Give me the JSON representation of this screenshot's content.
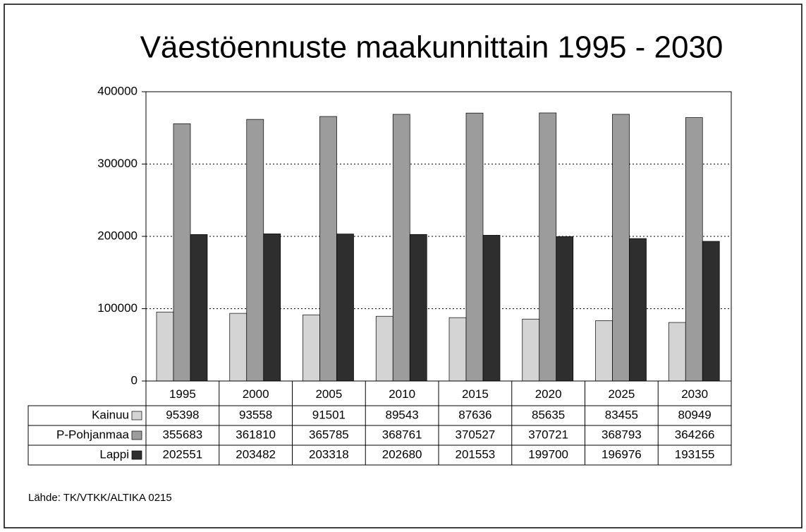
{
  "chart_data": {
    "type": "bar",
    "title": "Väestöennuste maakunnittain 1995 - 2030",
    "categories": [
      "1995",
      "2000",
      "2005",
      "2010",
      "2015",
      "2020",
      "2025",
      "2030"
    ],
    "series": [
      {
        "name": "Kainuu",
        "color": "#d4d4d4",
        "values": [
          95398,
          93558,
          91501,
          89543,
          87636,
          85635,
          83455,
          80949
        ]
      },
      {
        "name": "P-Pohjanmaa",
        "color": "#9c9c9c",
        "values": [
          355683,
          361810,
          365785,
          368761,
          370527,
          370721,
          368793,
          364266
        ]
      },
      {
        "name": "Lappi",
        "color": "#2e2e2e",
        "values": [
          202551,
          203482,
          203318,
          202680,
          201553,
          199700,
          196976,
          193155
        ]
      }
    ],
    "ylim": [
      0,
      400000
    ],
    "yticks": [
      0,
      100000,
      200000,
      300000,
      400000
    ],
    "grid": true,
    "source": "Lähde: TK/VTKK/ALTIKA 0215"
  }
}
